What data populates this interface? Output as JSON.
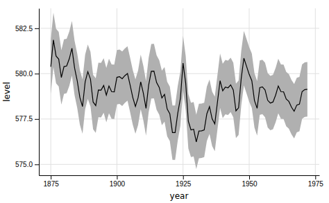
{
  "chart_data": {
    "type": "line",
    "xlabel": "year",
    "ylabel": "level",
    "grid": true,
    "xlim": [
      1870.5,
      1976.5
    ],
    "ylim": [
      574.4,
      583.6
    ],
    "xticks": [
      1875,
      1900,
      1925,
      1950,
      1975
    ],
    "yticks": [
      {
        "value": 575.0,
        "label": "575.0"
      },
      577.5,
      {
        "value": 580.0,
        "label": "580.0"
      },
      582.5
    ],
    "x": [
      1875,
      1876,
      1877,
      1878,
      1879,
      1880,
      1881,
      1882,
      1883,
      1884,
      1885,
      1886,
      1887,
      1888,
      1889,
      1890,
      1891,
      1892,
      1893,
      1894,
      1895,
      1896,
      1897,
      1898,
      1899,
      1900,
      1901,
      1902,
      1903,
      1904,
      1905,
      1906,
      1907,
      1908,
      1909,
      1910,
      1911,
      1912,
      1913,
      1914,
      1915,
      1916,
      1917,
      1918,
      1919,
      1920,
      1921,
      1922,
      1923,
      1924,
      1925,
      1926,
      1927,
      1928,
      1929,
      1930,
      1931,
      1932,
      1933,
      1934,
      1935,
      1936,
      1937,
      1938,
      1939,
      1940,
      1941,
      1942,
      1943,
      1944,
      1945,
      1946,
      1947,
      1948,
      1949,
      1950,
      1951,
      1952,
      1953,
      1954,
      1955,
      1956,
      1957,
      1958,
      1959,
      1960,
      1961,
      1962,
      1963,
      1964,
      1965,
      1966,
      1967,
      1968,
      1969,
      1970,
      1971,
      1972
    ],
    "series": [
      {
        "type": "area",
        "color": "#b0b0b0",
        "lower": [
          578.88,
          580.36,
          579.47,
          579.3,
          578.29,
          578.89,
          578.92,
          579.32,
          579.9,
          578.81,
          578.11,
          577.19,
          576.69,
          578.05,
          578.61,
          578.2,
          576.94,
          576.74,
          577.6,
          577.59,
          577.85,
          577.32,
          577.82,
          577.51,
          577.5,
          578.3,
          578.33,
          578.22,
          578.39,
          578.51,
          577.87,
          577.19,
          576.69,
          577.17,
          578.05,
          577.42,
          576.59,
          577.87,
          578.63,
          578.64,
          578.01,
          577.74,
          577.16,
          577.36,
          576.55,
          576.29,
          575.25,
          575.25,
          576.32,
          577.14,
          579.08,
          577.98,
          575.88,
          575.4,
          575.44,
          574.74,
          575.34,
          575.35,
          575.4,
          576.29,
          576.68,
          576.01,
          575.73,
          576.92,
          578.11,
          577.55,
          577.76,
          577.72,
          577.88,
          577.6,
          576.45,
          576.62,
          578.25,
          579.35,
          578.91,
          578.46,
          578.11,
          577.02,
          576.59,
          577.73,
          577.77,
          577.6,
          577.03,
          576.88,
          576.94,
          577.32,
          577.82,
          577.51,
          577.5,
          577.1,
          576.97,
          576.65,
          576.43,
          576.77,
          576.82,
          577.51,
          577.62,
          577.64
        ],
        "upper": [
          581.88,
          583.36,
          582.47,
          582.3,
          581.29,
          581.89,
          581.92,
          582.32,
          582.9,
          581.81,
          581.11,
          580.19,
          579.69,
          581.05,
          581.61,
          581.2,
          579.94,
          579.74,
          580.6,
          580.59,
          580.85,
          580.32,
          580.82,
          580.51,
          580.5,
          581.3,
          581.33,
          581.22,
          581.39,
          581.51,
          580.87,
          580.19,
          579.69,
          580.17,
          581.05,
          580.42,
          579.59,
          580.87,
          581.63,
          581.64,
          581.01,
          580.74,
          580.16,
          580.36,
          579.55,
          579.29,
          578.25,
          578.25,
          579.32,
          580.14,
          582.08,
          580.98,
          578.88,
          578.4,
          578.44,
          577.74,
          578.34,
          578.35,
          578.4,
          579.29,
          579.68,
          579.01,
          578.73,
          579.92,
          581.11,
          580.55,
          580.76,
          580.72,
          580.88,
          580.6,
          579.45,
          579.62,
          581.25,
          582.35,
          581.91,
          581.46,
          581.11,
          580.02,
          579.59,
          580.73,
          580.77,
          580.6,
          580.03,
          579.88,
          579.94,
          580.32,
          580.82,
          580.51,
          580.5,
          580.1,
          579.97,
          579.65,
          579.43,
          579.77,
          579.82,
          580.51,
          580.62,
          580.64
        ]
      },
      {
        "type": "line",
        "color": "#000000",
        "values": [
          580.38,
          581.86,
          580.97,
          580.8,
          579.79,
          580.39,
          580.42,
          580.82,
          581.4,
          580.31,
          579.61,
          578.69,
          578.19,
          579.55,
          580.11,
          579.7,
          578.44,
          578.24,
          579.1,
          579.09,
          579.35,
          578.82,
          579.32,
          579.01,
          579.0,
          579.8,
          579.83,
          579.72,
          579.89,
          580.01,
          579.37,
          578.69,
          578.19,
          578.67,
          579.55,
          578.92,
          578.09,
          579.37,
          580.13,
          580.14,
          579.51,
          579.24,
          578.66,
          578.86,
          578.05,
          577.79,
          576.75,
          576.75,
          577.82,
          578.64,
          580.58,
          579.48,
          577.38,
          576.9,
          576.94,
          576.24,
          576.84,
          576.85,
          576.9,
          577.79,
          578.18,
          577.51,
          577.23,
          578.42,
          579.61,
          579.05,
          579.26,
          579.22,
          579.38,
          579.1,
          577.95,
          578.12,
          579.75,
          580.85,
          580.41,
          579.96,
          579.61,
          578.52,
          578.09,
          579.23,
          579.27,
          579.1,
          578.53,
          578.38,
          578.44,
          578.82,
          579.32,
          579.01,
          579.0,
          578.6,
          578.47,
          578.15,
          577.93,
          578.27,
          578.32,
          579.01,
          579.12,
          579.14
        ]
      }
    ]
  }
}
